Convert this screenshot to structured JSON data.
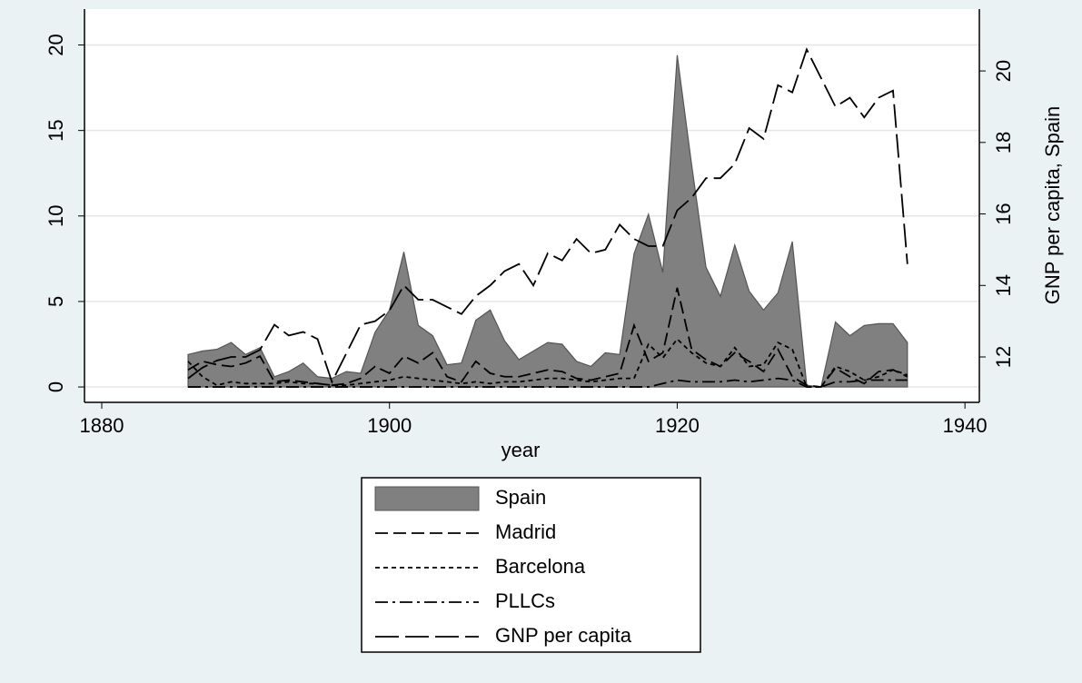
{
  "chart_data": {
    "type": "line",
    "x_label": "year",
    "y2_label": "GNP per capita, Spain",
    "x": [
      1886,
      1887,
      1888,
      1889,
      1890,
      1891,
      1892,
      1893,
      1894,
      1895,
      1896,
      1897,
      1898,
      1899,
      1900,
      1901,
      1902,
      1903,
      1904,
      1905,
      1906,
      1907,
      1908,
      1909,
      1910,
      1911,
      1912,
      1913,
      1914,
      1915,
      1916,
      1917,
      1918,
      1919,
      1920,
      1921,
      1922,
      1923,
      1924,
      1925,
      1926,
      1927,
      1928,
      1929,
      1930,
      1931,
      1932,
      1933,
      1934,
      1935,
      1936
    ],
    "series": [
      {
        "name": "Spain",
        "type": "area",
        "color": "#808080",
        "values": [
          1.9,
          2.1,
          2.2,
          2.6,
          1.9,
          2.3,
          0.6,
          0.9,
          1.4,
          0.6,
          0.5,
          0.9,
          0.8,
          3.2,
          4.5,
          7.9,
          3.6,
          3.0,
          1.3,
          1.4,
          3.9,
          4.5,
          2.7,
          1.6,
          2.1,
          2.6,
          2.5,
          1.5,
          1.2,
          2.0,
          1.9,
          7.8,
          10.1,
          6.7,
          19.4,
          13.0,
          7.0,
          5.3,
          8.3,
          5.6,
          4.5,
          5.5,
          8.5,
          0.1,
          0,
          3.8,
          3.0,
          3.6,
          3.7,
          3.7,
          2.6
        ]
      },
      {
        "name": "Madrid",
        "type": "line",
        "color": "#000000",
        "values": [
          1.0,
          1.5,
          1.3,
          1.2,
          1.4,
          1.8,
          0.3,
          0.4,
          0.3,
          0.2,
          0.1,
          0.2,
          0.5,
          1.2,
          0.8,
          1.8,
          1.4,
          2.0,
          0.6,
          0.3,
          1.5,
          0.8,
          0.6,
          0.6,
          0.8,
          1.0,
          0.9,
          0.5,
          0.4,
          0.6,
          0.8,
          3.6,
          1.5,
          2.0,
          5.8,
          2.2,
          1.6,
          1.2,
          2.0,
          1.5,
          0.9,
          2.2,
          0.6,
          0.1,
          0,
          1.1,
          0.6,
          0.2,
          0.9,
          1.0,
          0.6
        ]
      },
      {
        "name": "Barcelona",
        "type": "line",
        "color": "#000000",
        "values": [
          1.5,
          0.6,
          0.1,
          0.3,
          0.2,
          0.2,
          0.2,
          0.3,
          0.2,
          0.2,
          0.1,
          0.1,
          0.2,
          0.3,
          0.4,
          0.6,
          0.5,
          0.4,
          0.3,
          0.2,
          0.3,
          0.2,
          0.3,
          0.3,
          0.4,
          0.5,
          0.5,
          0.4,
          0.3,
          0.4,
          0.5,
          0.5,
          2.5,
          1.7,
          2.8,
          2.0,
          1.4,
          1.2,
          2.3,
          1.2,
          1.3,
          2.6,
          2.2,
          0,
          0,
          1.2,
          0.9,
          0.4,
          0.6,
          1.0,
          0.7
        ]
      },
      {
        "name": "PLLCs",
        "type": "line",
        "color": "#000000",
        "values": [
          0,
          0,
          0,
          0,
          0,
          0,
          0,
          0,
          0,
          0,
          0,
          0,
          0,
          0,
          0,
          0,
          0,
          0,
          0,
          0,
          0,
          0,
          0,
          0,
          0,
          0,
          0,
          0,
          0,
          0,
          0,
          0,
          0,
          0.2,
          0.4,
          0.3,
          0.3,
          0.3,
          0.4,
          0.3,
          0.4,
          0.5,
          0.4,
          0,
          0,
          0.3,
          0.3,
          0.4,
          0.4,
          0.4,
          0.4
        ]
      },
      {
        "name": "GNP per capita",
        "type": "line",
        "axis": "y2",
        "color": "#000000",
        "values": [
          11.4,
          11.7,
          11.9,
          12.0,
          12.0,
          12.2,
          12.9,
          12.6,
          12.7,
          12.5,
          11.3,
          12.1,
          12.9,
          13.0,
          13.3,
          14.0,
          13.6,
          13.6,
          13.4,
          13.2,
          13.7,
          14.0,
          14.4,
          14.6,
          14.0,
          14.9,
          14.7,
          15.3,
          14.9,
          15.0,
          15.7,
          15.3,
          15.1,
          15.1,
          16.1,
          16.45,
          17.0,
          17.0,
          17.4,
          18.4,
          18.1,
          19.6,
          19.4,
          20.6,
          19.8,
          19.0,
          19.25,
          18.7,
          19.25,
          19.45,
          14.6
        ]
      }
    ],
    "xlim": [
      1878.8,
      1941
    ],
    "xticks": [
      1880,
      1900,
      1920,
      1940
    ],
    "ylim": [
      -0.9,
      22.1
    ],
    "yticks": [
      0,
      5,
      10,
      15,
      20
    ],
    "y2lim": [
      10.73,
      21.73
    ],
    "y2ticks": [
      12,
      14,
      16,
      18,
      20
    ],
    "grid": true
  }
}
